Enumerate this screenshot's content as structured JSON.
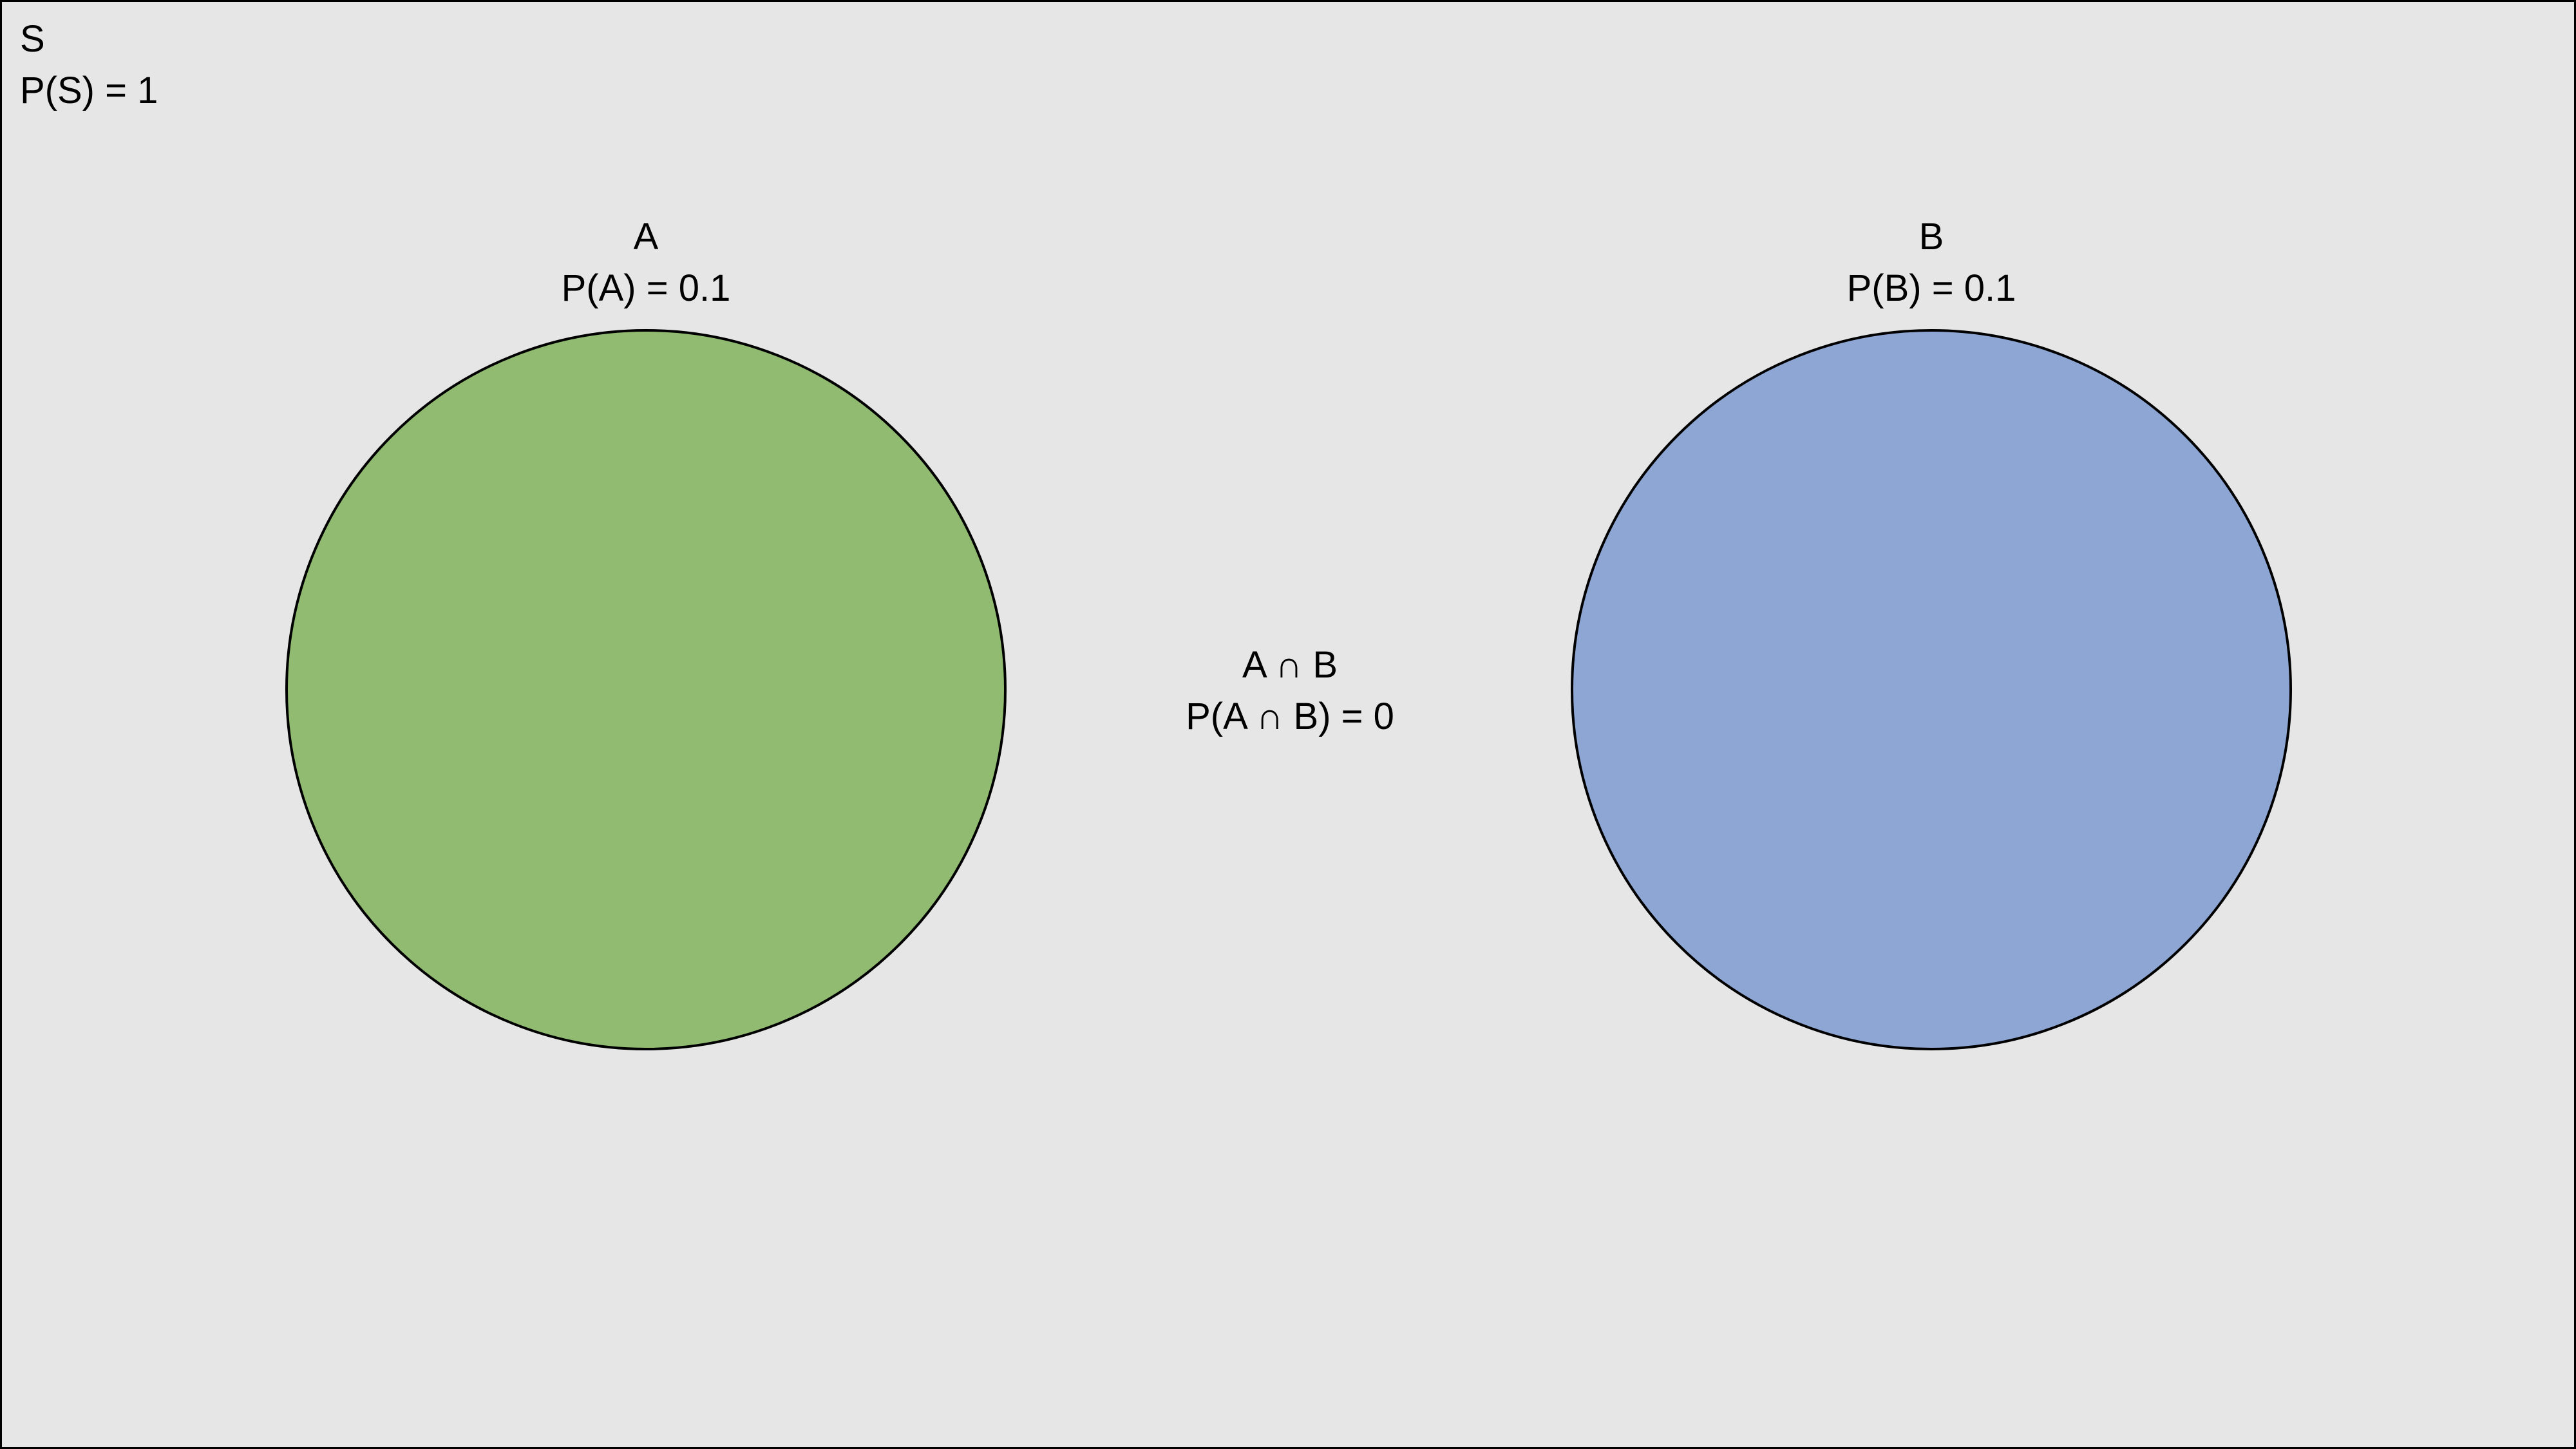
{
  "sample_space": {
    "name": "S",
    "probability": "P(S) = 1"
  },
  "sets": [
    {
      "name": "A",
      "probability": "P(A) = 0.1",
      "fill": "#90bb70"
    },
    {
      "name": "B",
      "probability": "P(B) = 0.1",
      "fill": "#8ea6d4"
    }
  ],
  "intersection": {
    "name": "A ∩ B",
    "probability": "P(A ∩ B) = 0"
  },
  "colors": {
    "background": "#e6e6e6",
    "stroke": "#000000"
  }
}
